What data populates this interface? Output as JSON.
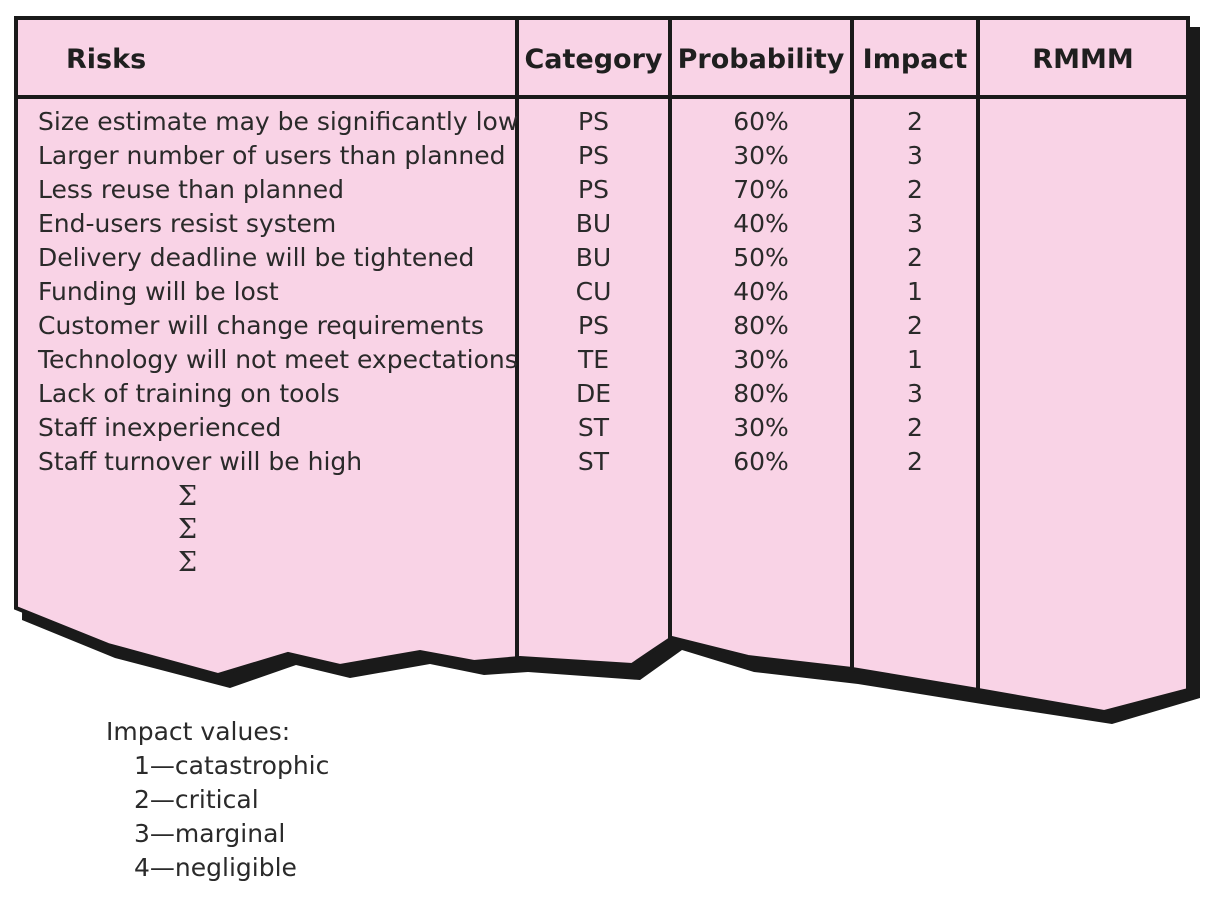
{
  "headers": {
    "risks": "Risks",
    "category": "Category",
    "probability": "Probability",
    "impact": "Impact",
    "rmmm": "RMMM"
  },
  "rows": [
    {
      "risk": "Size estimate may be significantly low",
      "category": "PS",
      "probability": "60%",
      "impact": "2"
    },
    {
      "risk": "Larger number of users than planned",
      "category": "PS",
      "probability": "30%",
      "impact": "3"
    },
    {
      "risk": "Less reuse than planned",
      "category": "PS",
      "probability": "70%",
      "impact": "2"
    },
    {
      "risk": "End-users resist system",
      "category": "BU",
      "probability": "40%",
      "impact": "3"
    },
    {
      "risk": "Delivery deadline will be tightened",
      "category": "BU",
      "probability": "50%",
      "impact": "2"
    },
    {
      "risk": "Funding will be lost",
      "category": "CU",
      "probability": "40%",
      "impact": "1"
    },
    {
      "risk": "Customer will change requirements",
      "category": "PS",
      "probability": "80%",
      "impact": "2"
    },
    {
      "risk": "Technology will not meet expectations",
      "category": "TE",
      "probability": "30%",
      "impact": "1"
    },
    {
      "risk": "Lack of training on tools",
      "category": "DE",
      "probability": "80%",
      "impact": "3"
    },
    {
      "risk": "Staff inexperienced",
      "category": "ST",
      "probability": "30%",
      "impact": "2"
    },
    {
      "risk": "Staff turnover will be high",
      "category": "ST",
      "probability": "60%",
      "impact": "2"
    }
  ],
  "continuation_marks": [
    "Σ",
    "Σ",
    "Σ"
  ],
  "legend": {
    "title": "Impact values:",
    "items": [
      "1—catastrophic",
      "2—critical",
      "3—marginal",
      "4—negligible"
    ]
  },
  "colors": {
    "fill": "#f9d3e6",
    "border": "#1a1a1a",
    "shadow": "#1a1a1a"
  }
}
